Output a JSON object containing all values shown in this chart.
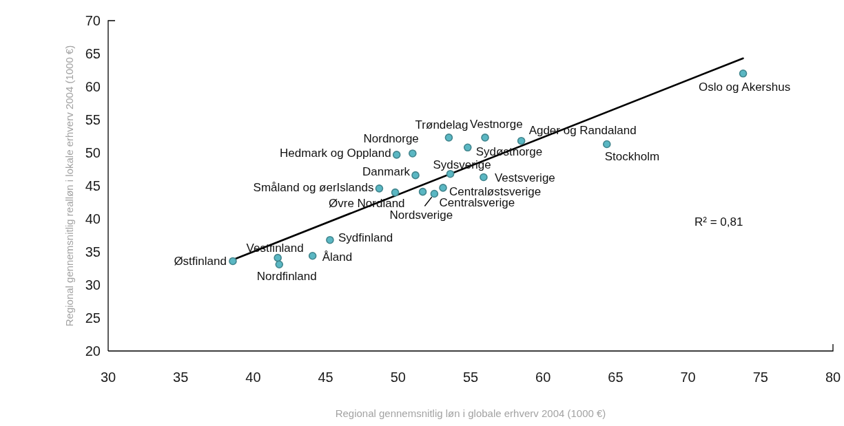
{
  "chart_data": {
    "type": "scatter",
    "xlabel": "Regional gennemsnitlig løn i globale erhverv 2004 (1000 €)",
    "ylabel": "Regional gennemsnitlig realløn i lokale erhverv 2004 (1000 €)",
    "xlim": [
      30,
      80
    ],
    "xticks": [
      30,
      35,
      40,
      45,
      50,
      55,
      60,
      65,
      70,
      75,
      80
    ],
    "ylim": [
      20,
      70
    ],
    "yticks": [
      20,
      25,
      30,
      35,
      40,
      45,
      50,
      55,
      60,
      65,
      70
    ],
    "marker": "circle",
    "annotations": [
      "R² = 0,81"
    ],
    "series": [
      {
        "name": "Østfinland",
        "color": "#5ab7c3",
        "x": [
          38.6
        ],
        "values": [
          33.6
        ]
      },
      {
        "name": "Vestfinland",
        "color": "#5ab7c3",
        "x": [
          41.7
        ],
        "values": [
          34.1
        ]
      },
      {
        "name": "Nordfinland",
        "color": "#5ab7c3",
        "x": [
          41.8
        ],
        "values": [
          33.1
        ]
      },
      {
        "name": "Åland",
        "color": "#5ab7c3",
        "x": [
          44.1
        ],
        "values": [
          34.4
        ]
      },
      {
        "name": "Sydfinland",
        "color": "#5ab7c3",
        "x": [
          45.3
        ],
        "values": [
          36.8
        ]
      },
      {
        "name": "Småland og øerIslands",
        "color": "#5ab7c3",
        "x": [
          48.7
        ],
        "values": [
          44.6
        ]
      },
      {
        "name": "Øvre Nordland",
        "color": "#5ab7c3",
        "x": [
          49.8
        ],
        "values": [
          44.0
        ]
      },
      {
        "name": "Hedmark og Oppland",
        "color": "#5ab7c3",
        "x": [
          49.9
        ],
        "values": [
          49.7
        ]
      },
      {
        "name": "Nordnorge",
        "color": "#5ab7c3",
        "x": [
          51.0
        ],
        "values": [
          49.9
        ]
      },
      {
        "name": "Danmark",
        "color": "#5ab7c3",
        "x": [
          51.2
        ],
        "values": [
          46.6
        ]
      },
      {
        "name": "Centralsverige",
        "color": "#5ab7c3",
        "x": [
          51.7
        ],
        "values": [
          44.1
        ]
      },
      {
        "name": "Nordsverige",
        "color": "#5ab7c3",
        "x": [
          52.5
        ],
        "values": [
          43.8
        ]
      },
      {
        "name": "Centraløstsverige",
        "color": "#5ab7c3",
        "x": [
          53.1
        ],
        "values": [
          44.7
        ]
      },
      {
        "name": "Trøndelag",
        "color": "#5ab7c3",
        "x": [
          53.5
        ],
        "values": [
          52.3
        ]
      },
      {
        "name": "Sydsverige",
        "color": "#5ab7c3",
        "x": [
          53.6
        ],
        "values": [
          46.8
        ]
      },
      {
        "name": "Sydøstnorge",
        "color": "#5ab7c3",
        "x": [
          54.8
        ],
        "values": [
          50.8
        ]
      },
      {
        "name": "Vestsverige",
        "color": "#5ab7c3",
        "x": [
          55.9
        ],
        "values": [
          46.3
        ]
      },
      {
        "name": "Vestnorge",
        "color": "#5ab7c3",
        "x": [
          56.0
        ],
        "values": [
          52.3
        ]
      },
      {
        "name": "Agder og Randaland",
        "color": "#5ab7c3",
        "x": [
          58.5
        ],
        "values": [
          51.8
        ]
      },
      {
        "name": "Stockholm",
        "color": "#5ab7c3",
        "x": [
          64.4
        ],
        "values": [
          51.3
        ]
      },
      {
        "name": "Oslo og Akershus",
        "color": "#5ab7c3",
        "x": [
          73.8
        ],
        "values": [
          62.0
        ]
      },
      {
        "type": "line",
        "color": "#000000",
        "marker": "none",
        "x": [
          38.6,
          73.8
        ],
        "values": [
          33.8,
          64.3
        ]
      }
    ]
  }
}
